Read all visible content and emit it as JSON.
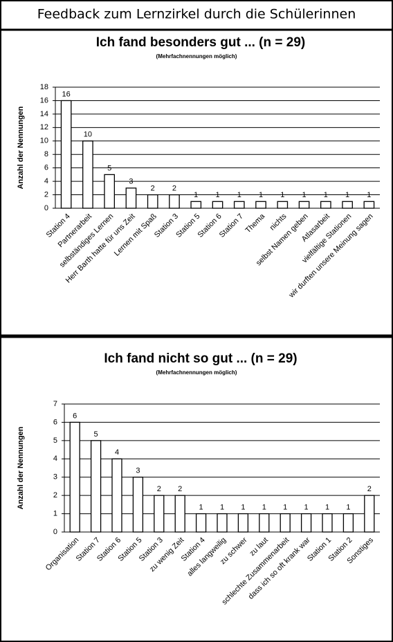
{
  "title": "Feedback zum Lernzirkel durch die Schülerinnen",
  "chart_data": [
    {
      "type": "bar",
      "title": "Ich fand besonders gut ... (n = 29)",
      "subtitle": "(Mehrfachnennungen möglich)",
      "y_label": "Anzahl der Nennungen",
      "categories": [
        "Station 4",
        "Partnerarbeit",
        "selbständiges Lernen",
        "Herr Barth hatte für uns Zeit",
        "Lernen mit Spaß",
        "Station 3",
        "Station 5",
        "Station 6",
        "Station 7",
        "Thema",
        "nichts",
        "selbst Namen geben",
        "Atlasarbeit",
        "vielfältige Stationen",
        "wir durften unsere Meinung sagen"
      ],
      "values": [
        16,
        10,
        5,
        3,
        2,
        2,
        1,
        1,
        1,
        1,
        1,
        1,
        1,
        1,
        1
      ],
      "color": "#ffffff",
      "ylim": [
        0,
        18
      ],
      "yticks": [
        0,
        2,
        4,
        6,
        8,
        10,
        12,
        14,
        16,
        18
      ],
      "grid": true
    },
    {
      "type": "bar",
      "title": "Ich fand nicht so gut ... (n = 29)",
      "subtitle": "(Mehrfachnennungen möglich)",
      "y_label": "Anzahl der Nennungen",
      "categories": [
        "Organisation",
        "Station 7",
        "Station 6",
        "Station 5",
        "Station 3",
        "zu wenig Zeit",
        "Station 4",
        "alles langweilig",
        "zu schwer",
        "zu laut",
        "schlechte Zusammenarbeit",
        "dass ich so oft krank war",
        "Station 1",
        "Station 2",
        "Sonstiges"
      ],
      "values": [
        6,
        5,
        4,
        3,
        2,
        2,
        1,
        1,
        1,
        1,
        1,
        1,
        1,
        1,
        2
      ],
      "color": "#ffffff",
      "ylim": [
        0,
        7
      ],
      "yticks": [
        0,
        1,
        2,
        3,
        4,
        5,
        6,
        7
      ],
      "grid": true
    }
  ]
}
